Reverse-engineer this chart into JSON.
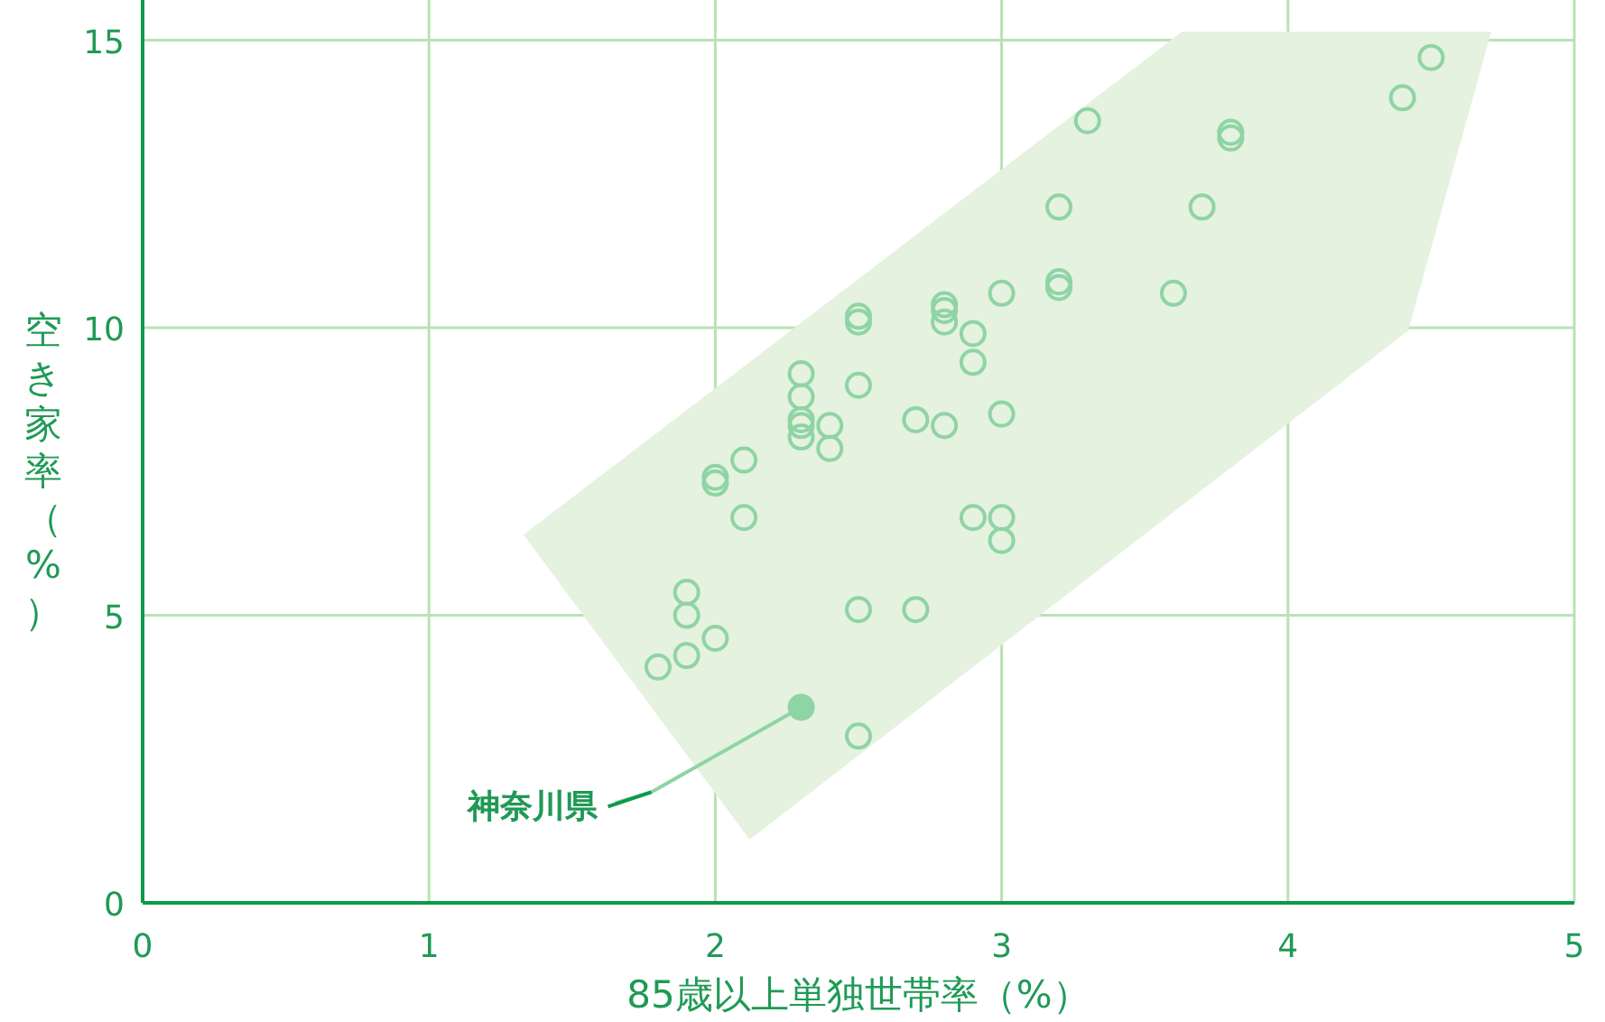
{
  "chart_data": {
    "type": "scatter",
    "xlabel": "85歳以上単独世帯率（%）",
    "ylabel": "空き家率（%）",
    "xlim": [
      0,
      5
    ],
    "ylim": [
      0,
      15.7
    ],
    "xticks": [
      0,
      1,
      2,
      3,
      4,
      5
    ],
    "yticks": [
      0,
      5,
      10,
      15
    ],
    "grid": true,
    "marker": "circle",
    "series": [
      {
        "type": "area",
        "marker": "none",
        "color": "#e4f2df",
        "x": [
          1.33,
          3.63,
          4.71,
          4.42,
          2.12,
          1.33
        ],
        "values": [
          6.4,
          15.15,
          15.15,
          9.95,
          1.1,
          6.4
        ]
      },
      {
        "color": "#8fd4a4",
        "x": [
          4.5,
          4.4,
          3.3,
          3.8,
          3.8,
          3.7,
          3.2,
          3.2,
          3.2,
          3.6,
          3.0,
          2.5,
          2.5,
          2.8,
          2.8,
          2.8,
          2.9,
          2.9,
          2.3,
          2.5,
          2.3,
          3.0,
          2.3,
          2.3,
          2.3,
          2.4,
          2.4,
          2.7,
          2.8,
          2.1,
          2.0,
          2.0,
          2.1,
          2.9,
          3.0,
          3.0,
          1.9,
          1.9,
          2.0,
          1.9,
          1.8,
          2.5,
          2.7,
          2.5
        ],
        "values": [
          14.7,
          14.0,
          13.6,
          13.4,
          13.3,
          12.1,
          12.1,
          10.8,
          10.7,
          10.6,
          10.6,
          10.2,
          10.1,
          10.4,
          10.3,
          10.1,
          9.9,
          9.4,
          9.2,
          9.0,
          8.8,
          8.5,
          8.4,
          8.3,
          8.1,
          8.3,
          7.9,
          8.4,
          8.3,
          7.7,
          7.4,
          7.3,
          6.7,
          6.7,
          6.7,
          6.3,
          5.4,
          5.0,
          4.6,
          4.3,
          4.1,
          5.1,
          5.1,
          2.9
        ]
      }
    ],
    "annotations": [
      {
        "text": "神奈川県",
        "x": 2.3,
        "y": 3.4
      }
    ]
  }
}
